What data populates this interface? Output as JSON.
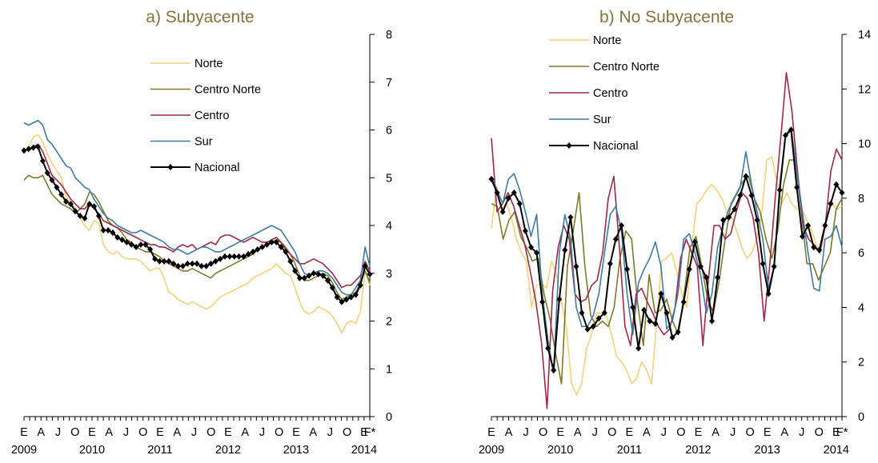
{
  "colors": {
    "norte": "#f2d27a",
    "centro_norte": "#7d7a2c",
    "centro": "#9e2945",
    "sur": "#3f7aa2",
    "nacional": "#000000",
    "title": "#86723e",
    "axis": "#000000"
  },
  "chart_data": [
    {
      "type": "line",
      "title": "a) Subyacente",
      "xlabel": "",
      "ylabel": "",
      "ylim": [
        0,
        8
      ],
      "yticks": [
        "0",
        "1",
        "2",
        "3",
        "4",
        "5",
        "6",
        "7",
        "8"
      ],
      "y_axis_side": "right",
      "x_month_labels": [
        "E",
        "A",
        "J",
        "O",
        "E",
        "A",
        "J",
        "O",
        "E",
        "A",
        "J",
        "O",
        "E",
        "A",
        "J",
        "O",
        "E",
        "A",
        "J",
        "O",
        "E",
        "F*"
      ],
      "x_year_labels": [
        "2009",
        "2010",
        "2011",
        "2012",
        "2013",
        "2014"
      ],
      "x_start": "2009-01",
      "x_end": "2014-02",
      "grid": false,
      "legend_position": "top-center",
      "series": [
        {
          "name": "Norte",
          "color_key": "norte",
          "markers": false,
          "values": [
            5.55,
            5.65,
            5.85,
            5.9,
            5.75,
            5.5,
            5.3,
            5.15,
            5.0,
            4.6,
            4.45,
            4.35,
            4.15,
            4.0,
            3.9,
            4.1,
            4.05,
            3.6,
            3.45,
            3.4,
            3.45,
            3.35,
            3.3,
            3.3,
            3.3,
            3.25,
            3.15,
            3.05,
            3.1,
            3.1,
            2.9,
            2.6,
            2.55,
            2.45,
            2.4,
            2.35,
            2.4,
            2.35,
            2.3,
            2.25,
            2.3,
            2.4,
            2.5,
            2.55,
            2.6,
            2.65,
            2.7,
            2.75,
            2.8,
            2.9,
            2.95,
            3.0,
            3.05,
            3.1,
            3.2,
            3.1,
            3.0,
            2.95,
            2.7,
            2.4,
            2.2,
            2.15,
            2.2,
            2.3,
            2.25,
            2.2,
            2.1,
            1.95,
            1.75,
            1.95,
            2.0,
            1.95,
            2.2,
            3.05,
            2.75
          ]
        },
        {
          "name": "Centro Norte",
          "color_key": "centro_norte",
          "markers": false,
          "values": [
            4.95,
            5.05,
            5.0,
            5.0,
            5.05,
            4.85,
            4.65,
            4.55,
            4.45,
            4.4,
            4.35,
            4.25,
            4.35,
            4.45,
            4.7,
            4.65,
            4.5,
            4.3,
            4.1,
            4.0,
            3.95,
            3.85,
            3.7,
            3.65,
            3.55,
            3.5,
            3.45,
            3.45,
            3.4,
            3.35,
            3.25,
            3.2,
            3.15,
            3.1,
            3.05,
            3.05,
            3.1,
            3.05,
            3.0,
            2.95,
            2.9,
            3.0,
            3.05,
            3.1,
            3.15,
            3.2,
            3.25,
            3.3,
            3.35,
            3.4,
            3.5,
            3.55,
            3.6,
            3.65,
            3.7,
            3.65,
            3.55,
            3.4,
            3.2,
            2.95,
            2.85,
            2.85,
            2.9,
            2.95,
            3.0,
            2.95,
            2.8,
            2.6,
            2.45,
            2.5,
            2.55,
            2.6,
            2.8,
            3.05,
            2.8
          ]
        },
        {
          "name": "Centro",
          "color_key": "centro",
          "markers": false,
          "values": [
            5.55,
            5.6,
            5.65,
            5.7,
            5.55,
            5.3,
            5.05,
            4.95,
            4.85,
            4.7,
            4.55,
            4.45,
            4.35,
            4.35,
            4.45,
            4.35,
            4.25,
            4.1,
            4.05,
            4.0,
            3.95,
            3.9,
            3.85,
            3.8,
            3.75,
            3.7,
            3.65,
            3.6,
            3.6,
            3.55,
            3.55,
            3.5,
            3.45,
            3.55,
            3.6,
            3.55,
            3.6,
            3.5,
            3.55,
            3.6,
            3.65,
            3.6,
            3.75,
            3.8,
            3.8,
            3.75,
            3.7,
            3.65,
            3.7,
            3.75,
            3.7,
            3.65,
            3.65,
            3.7,
            3.75,
            3.65,
            3.5,
            3.4,
            3.3,
            3.2,
            3.2,
            3.25,
            3.3,
            3.25,
            3.2,
            3.1,
            3.0,
            2.85,
            2.7,
            2.75,
            2.75,
            2.85,
            2.95,
            3.25,
            3.05
          ]
        },
        {
          "name": "Sur",
          "color_key": "sur",
          "markers": false,
          "values": [
            6.15,
            6.1,
            6.15,
            6.2,
            6.1,
            5.8,
            5.7,
            5.55,
            5.4,
            5.25,
            5.2,
            5.0,
            4.9,
            4.8,
            4.75,
            4.55,
            4.4,
            4.25,
            4.15,
            4.1,
            4.0,
            3.95,
            3.9,
            3.85,
            3.85,
            3.9,
            3.85,
            3.8,
            3.75,
            3.7,
            3.65,
            3.55,
            3.5,
            3.5,
            3.45,
            3.4,
            3.45,
            3.5,
            3.55,
            3.55,
            3.5,
            3.45,
            3.45,
            3.5,
            3.55,
            3.6,
            3.65,
            3.7,
            3.75,
            3.8,
            3.85,
            3.9,
            3.95,
            4.0,
            3.95,
            3.9,
            3.75,
            3.6,
            3.45,
            3.2,
            3.0,
            2.95,
            3.0,
            3.05,
            3.05,
            3.0,
            2.9,
            2.75,
            2.6,
            2.55,
            2.55,
            2.7,
            2.85,
            3.55,
            3.15
          ]
        },
        {
          "name": "Nacional",
          "color_key": "nacional",
          "markers": true,
          "values": [
            5.57,
            5.6,
            5.63,
            5.65,
            5.35,
            5.1,
            4.95,
            4.8,
            4.65,
            4.5,
            4.45,
            4.3,
            4.2,
            4.15,
            4.45,
            4.4,
            4.2,
            3.9,
            3.9,
            3.85,
            3.75,
            3.7,
            3.65,
            3.6,
            3.55,
            3.6,
            3.6,
            3.5,
            3.3,
            3.25,
            3.25,
            3.25,
            3.2,
            3.15,
            3.15,
            3.2,
            3.2,
            3.2,
            3.15,
            3.15,
            3.2,
            3.25,
            3.3,
            3.35,
            3.35,
            3.35,
            3.35,
            3.35,
            3.4,
            3.45,
            3.5,
            3.55,
            3.6,
            3.65,
            3.65,
            3.55,
            3.45,
            3.25,
            3.05,
            2.9,
            2.9,
            2.95,
            3.0,
            2.98,
            2.95,
            2.85,
            2.7,
            2.5,
            2.4,
            2.45,
            2.5,
            2.55,
            2.75,
            3.15,
            2.98
          ]
        }
      ]
    },
    {
      "type": "line",
      "title": "b) No Subyacente",
      "xlabel": "",
      "ylabel": "",
      "ylim": [
        0,
        14
      ],
      "yticks": [
        "0",
        "2",
        "4",
        "6",
        "8",
        "10",
        "12",
        "14"
      ],
      "y_axis_side": "right",
      "x_month_labels": [
        "E",
        "A",
        "J",
        "O",
        "E",
        "A",
        "J",
        "O",
        "E",
        "A",
        "J",
        "O",
        "E",
        "A",
        "J",
        "O",
        "E",
        "A",
        "J",
        "O",
        "E",
        "F*"
      ],
      "x_year_labels": [
        "2009",
        "2010",
        "2011",
        "2012",
        "2013",
        "2014"
      ],
      "x_start": "2009-01",
      "x_end": "2014-02",
      "grid": false,
      "legend_position": "top-left",
      "series": [
        {
          "name": "Norte",
          "color_key": "norte",
          "markers": false,
          "values": [
            6.9,
            8.4,
            7.6,
            7.8,
            7.3,
            6.5,
            6.0,
            5.7,
            4.0,
            4.8,
            4.9,
            4.7,
            5.7,
            5.2,
            4.2,
            3.2,
            1.2,
            0.8,
            1.2,
            2.5,
            3.0,
            3.8,
            3.8,
            3.7,
            3.0,
            2.2,
            2.0,
            1.7,
            1.2,
            1.4,
            2.0,
            1.7,
            1.2,
            3.5,
            5.7,
            5.8,
            6.0,
            5.3,
            4.5,
            4.0,
            6.2,
            7.8,
            8.0,
            8.3,
            8.5,
            8.3,
            8.0,
            7.5,
            7.3,
            6.8,
            6.2,
            5.8,
            6.0,
            6.5,
            7.5,
            9.4,
            9.5,
            8.6,
            7.8,
            8.2,
            7.8,
            7.6,
            7.6,
            7.2,
            6.8,
            6.2,
            6.2,
            7.4,
            7.8,
            7.6,
            7.7
          ]
        },
        {
          "name": "Centro Norte",
          "color_key": "centro_norte",
          "markers": false,
          "values": [
            7.8,
            7.7,
            6.5,
            7.2,
            7.5,
            6.6,
            6.2,
            5.7,
            5.8,
            4.5,
            3.6,
            2.3,
            1.2,
            5.5,
            6.8,
            8.2,
            5.5,
            3.7,
            3.3,
            3.5,
            3.3,
            4.0,
            5.8,
            6.8,
            6.5,
            4.2,
            2.6,
            5.2,
            3.8,
            3.9,
            4.3,
            3.5,
            3.0,
            4.5,
            6.2,
            6.6,
            5.5,
            4.3,
            3.8,
            5.0,
            6.5,
            7.8,
            8.2,
            8.6,
            8.8,
            8.0,
            7.5,
            6.5,
            5.8,
            6.8,
            8.5,
            9.4,
            9.4,
            7.6,
            5.6,
            5.6,
            5.0,
            5.5,
            6.0,
            7.6,
            8.0
          ]
        },
        {
          "name": "Centro",
          "color_key": "centro",
          "markers": false,
          "values": [
            10.2,
            7.5,
            7.8,
            8.2,
            7.7,
            7.0,
            6.3,
            5.3,
            4.2,
            2.7,
            0.3,
            4.6,
            6.2,
            7.0,
            6.5,
            4.5,
            4.2,
            4.3,
            4.8,
            5.0,
            6.0,
            8.0,
            8.8,
            6.2,
            3.3,
            2.6,
            4.5,
            4.7,
            4.2,
            3.8,
            3.3,
            3.0,
            3.2,
            4.0,
            5.8,
            6.5,
            6.0,
            5.5,
            2.6,
            5.0,
            7.0,
            7.0,
            6.5,
            6.7,
            7.5,
            8.2,
            8.0,
            7.3,
            6.0,
            3.5,
            5.5,
            8.0,
            10.2,
            12.6,
            11.2,
            9.0,
            7.0,
            6.5,
            6.3,
            6.0,
            7.0,
            9.0,
            9.8,
            9.4
          ]
        },
        {
          "name": "Sur",
          "color_key": "sur",
          "markers": false,
          "values": [
            8.8,
            8.3,
            7.8,
            8.7,
            8.9,
            8.3,
            7.5,
            6.6,
            7.4,
            4.5,
            2.8,
            1.6,
            6.0,
            7.4,
            6.5,
            4.0,
            3.3,
            3.3,
            3.7,
            4.5,
            6.0,
            7.4,
            7.7,
            6.8,
            4.5,
            3.0,
            4.9,
            5.4,
            5.8,
            6.4,
            5.5,
            3.2,
            3.5,
            4.5,
            6.5,
            6.7,
            6.0,
            5.2,
            3.8,
            4.5,
            6.2,
            7.0,
            7.6,
            8.0,
            8.4,
            9.7,
            8.5,
            7.5,
            6.5,
            4.7,
            5.5,
            8.5,
            10.3,
            10.6,
            9.0,
            7.5,
            6.0,
            4.7,
            4.6,
            6.5,
            6.6,
            7.0,
            6.2
          ]
        },
        {
          "name": "Nacional",
          "color_key": "nacional",
          "markers": true,
          "values": [
            8.7,
            8.2,
            7.5,
            8.0,
            8.2,
            7.8,
            6.8,
            6.2,
            6.0,
            4.2,
            2.5,
            1.7,
            4.3,
            6.1,
            7.3,
            5.5,
            3.8,
            3.2,
            3.3,
            3.6,
            3.8,
            5.6,
            6.5,
            7.0,
            5.4,
            4.0,
            2.5,
            3.9,
            3.5,
            3.4,
            4.5,
            3.8,
            2.9,
            3.1,
            4.2,
            5.4,
            6.4,
            5.5,
            5.1,
            3.5,
            5.1,
            7.2,
            7.3,
            7.6,
            8.1,
            8.8,
            8.1,
            7.2,
            5.6,
            4.5,
            5.5,
            8.3,
            10.3,
            10.5,
            8.4,
            6.6,
            7.0,
            6.2,
            6.1,
            7.0,
            7.8,
            8.5,
            8.2
          ]
        }
      ]
    }
  ]
}
